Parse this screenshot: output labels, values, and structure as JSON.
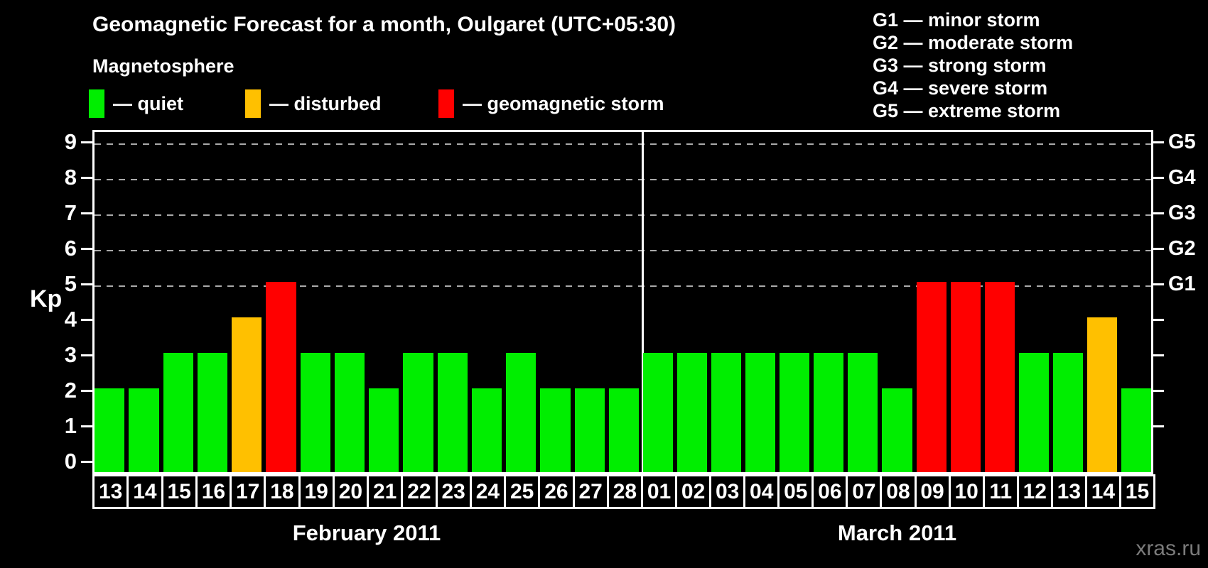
{
  "title": "Geomagnetic Forecast for a month, Oulgaret (UTC+05:30)",
  "subtitle": "Magnetosphere",
  "legend": {
    "items": [
      {
        "label": "— quiet",
        "status": "quiet",
        "color": "#00ee00"
      },
      {
        "label": "— disturbed",
        "status": "disturbed",
        "color": "#ffc000"
      },
      {
        "label": "— geomagnetic storm",
        "status": "storm",
        "color": "#ff0000"
      }
    ]
  },
  "g_scale_legend": [
    "G1 — minor storm",
    "G2 — moderate storm",
    "G3 — strong storm",
    "G4 — severe storm",
    "G5 — extreme storm"
  ],
  "watermark": "xras.ru",
  "chart_data": {
    "type": "bar",
    "title": "Geomagnetic Forecast for a month, Oulgaret (UTC+05:30)",
    "ylabel": "Kp",
    "ylim": [
      0,
      9
    ],
    "y_ticks": [
      0,
      1,
      2,
      3,
      4,
      5,
      6,
      7,
      8,
      9
    ],
    "gridlines_at": [
      5,
      6,
      7,
      8,
      9
    ],
    "grid": "dashed horizontal lines at Kp 5-9 only",
    "right_axis_labels": {
      "5": "G1",
      "6": "G2",
      "7": "G3",
      "8": "G4",
      "9": "G5"
    },
    "status_rule": {
      "quiet": "Kp 0-3",
      "disturbed": "Kp 4",
      "storm": "Kp 5-9"
    },
    "status_colors": {
      "quiet": "#00ee00",
      "disturbed": "#ffc000",
      "storm": "#ff0000"
    },
    "months": [
      {
        "label": "February 2011",
        "days": [
          "13",
          "14",
          "15",
          "16",
          "17",
          "18",
          "19",
          "20",
          "21",
          "22",
          "23",
          "24",
          "25",
          "26",
          "27",
          "28"
        ],
        "kp": [
          2,
          2,
          3,
          3,
          4,
          5,
          3,
          3,
          2,
          3,
          3,
          2,
          3,
          2,
          2,
          2
        ]
      },
      {
        "label": "March 2011",
        "days": [
          "01",
          "02",
          "03",
          "04",
          "05",
          "06",
          "07",
          "08",
          "09",
          "10",
          "11",
          "12",
          "13",
          "14",
          "15"
        ],
        "kp": [
          3,
          3,
          3,
          3,
          3,
          3,
          3,
          2,
          5,
          5,
          5,
          3,
          3,
          4,
          2
        ]
      }
    ]
  }
}
